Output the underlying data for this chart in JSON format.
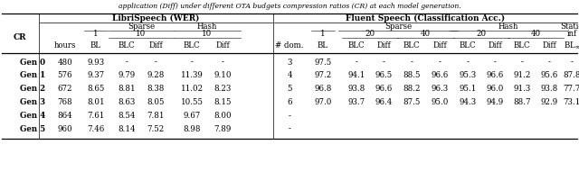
{
  "caption": "application (Diff) under different OTA budgets compression ratios (CR) at each model generation.",
  "libri_header": "LibriSpeech (WER)",
  "fluent_header": "Fluent Speech (Classification Acc.)",
  "sparse_label": "Sparse",
  "hash_label": "Hash",
  "static_label": "Static",
  "cr_label": "CR",
  "hours_label": "hours",
  "dom_label": "# dom.",
  "bl_label": "BL",
  "blc_label": "BLC",
  "diff_label": "Diff",
  "rows": [
    {
      "gen": "Gen 0",
      "hours": "480",
      "bl1": "9.93",
      "sp10_blc": "-",
      "sp10_diff": "-",
      "h10_blc": "-",
      "h10_diff": "-",
      "dom": "3",
      "fl_bl1": "97.5",
      "sp20_blc": "-",
      "sp20_diff": "-",
      "sp40_blc": "-",
      "sp40_diff": "-",
      "h20_blc": "-",
      "h20_diff": "-",
      "h40_blc": "-",
      "h40_diff": "-",
      "blinf": "-"
    },
    {
      "gen": "Gen 1",
      "hours": "576",
      "bl1": "9.37",
      "sp10_blc": "9.79",
      "sp10_diff": "9.28",
      "h10_blc": "11.39",
      "h10_diff": "9.10",
      "dom": "4",
      "fl_bl1": "97.2",
      "sp20_blc": "94.1",
      "sp20_diff": "96.5",
      "sp40_blc": "88.5",
      "sp40_diff": "96.6",
      "h20_blc": "95.3",
      "h20_diff": "96.6",
      "h40_blc": "91.2",
      "h40_diff": "95.6",
      "blinf": "87.8"
    },
    {
      "gen": "Gen 2",
      "hours": "672",
      "bl1": "8.65",
      "sp10_blc": "8.81",
      "sp10_diff": "8.38",
      "h10_blc": "11.02",
      "h10_diff": "8.23",
      "dom": "5",
      "fl_bl1": "96.8",
      "sp20_blc": "93.8",
      "sp20_diff": "96.6",
      "sp40_blc": "88.2",
      "sp40_diff": "96.3",
      "h20_blc": "95.1",
      "h20_diff": "96.0",
      "h40_blc": "91.3",
      "h40_diff": "93.8",
      "blinf": "77.7"
    },
    {
      "gen": "Gen 3",
      "hours": "768",
      "bl1": "8.01",
      "sp10_blc": "8.63",
      "sp10_diff": "8.05",
      "h10_blc": "10.55",
      "h10_diff": "8.15",
      "dom": "6",
      "fl_bl1": "97.0",
      "sp20_blc": "93.7",
      "sp20_diff": "96.4",
      "sp40_blc": "87.5",
      "sp40_diff": "95.0",
      "h20_blc": "94.3",
      "h20_diff": "94.9",
      "h40_blc": "88.7",
      "h40_diff": "92.9",
      "blinf": "73.1"
    },
    {
      "gen": "Gen 4",
      "hours": "864",
      "bl1": "7.61",
      "sp10_blc": "8.54",
      "sp10_diff": "7.81",
      "h10_blc": "9.67",
      "h10_diff": "8.00",
      "dom": "-",
      "fl_bl1": "",
      "sp20_blc": "",
      "sp20_diff": "",
      "sp40_blc": "",
      "sp40_diff": "",
      "h20_blc": "",
      "h20_diff": "",
      "h40_blc": "",
      "h40_diff": "",
      "blinf": ""
    },
    {
      "gen": "Gen 5",
      "hours": "960",
      "bl1": "7.46",
      "sp10_blc": "8.14",
      "sp10_diff": "7.52",
      "h10_blc": "8.98",
      "h10_diff": "7.89",
      "dom": "-",
      "fl_bl1": "",
      "sp20_blc": "",
      "sp20_diff": "",
      "sp40_blc": "",
      "sp40_diff": "",
      "h20_blc": "",
      "h20_diff": "",
      "h40_blc": "",
      "h40_diff": "",
      "blinf": ""
    }
  ],
  "bg_color": "#ffffff",
  "text_color": "#000000",
  "line_color": "#000000",
  "caption_fontsize": 5.5,
  "header_fontsize": 6.5,
  "data_fontsize": 6.2,
  "col_fontsize": 6.2,
  "figW": 6.4,
  "figH": 1.91
}
